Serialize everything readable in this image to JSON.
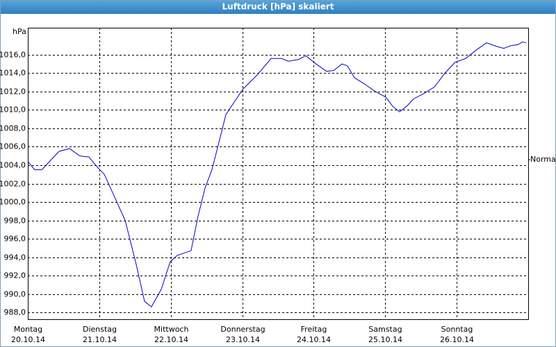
{
  "chart_data": {
    "type": "line",
    "title": "Luftdruck [hPa] skaliert",
    "y_unit": "hPa",
    "normal": {
      "value": 1004.6,
      "label": "Normal"
    },
    "xlim": [
      0,
      168
    ],
    "xticks": [
      {
        "value": 0,
        "label": "Montag"
      },
      {
        "value": 24,
        "label": "Dienstag"
      },
      {
        "value": 48,
        "label": "Mittwoch"
      },
      {
        "value": 72,
        "label": "Donnerstag"
      },
      {
        "value": 96,
        "label": "Freitag"
      },
      {
        "value": 120,
        "label": "Samstag"
      },
      {
        "value": 144,
        "label": "Sonntag"
      }
    ],
    "xtick_dates": [
      "20.10.14",
      "21.10.14",
      "22.10.14",
      "23.10.14",
      "24.10.14",
      "25.10.14",
      "26.10.14"
    ],
    "ylim": [
      987.25,
      1018.94
    ],
    "yticks": [
      {
        "value": 988,
        "label": "988,0"
      },
      {
        "value": 990,
        "label": "990,0"
      },
      {
        "value": 992,
        "label": "992,0"
      },
      {
        "value": 994,
        "label": "994,0"
      },
      {
        "value": 996,
        "label": "996,0"
      },
      {
        "value": 998,
        "label": "998,0"
      },
      {
        "value": 1000,
        "label": "1000,0"
      },
      {
        "value": 1002,
        "label": "1002,0"
      },
      {
        "value": 1004,
        "label": "1004,0"
      },
      {
        "value": 1006,
        "label": "1006,0"
      },
      {
        "value": 1008,
        "label": "1008,0"
      },
      {
        "value": 1010,
        "label": "1010,0"
      },
      {
        "value": 1012,
        "label": "1012,0"
      },
      {
        "value": 1014,
        "label": "1014,0"
      },
      {
        "value": 1016,
        "label": "1016,0"
      }
    ],
    "grid": true,
    "series": [
      {
        "color": "#0000c0",
        "x": [
          0,
          2.3,
          4.7,
          7,
          10.5,
          14,
          17.5,
          20.5,
          23.3,
          25.7,
          29.2,
          32.7,
          36.2,
          39.2,
          41.5,
          44.8,
          47.8,
          50.2,
          54.8,
          57.2,
          59.5,
          61.8,
          64.2,
          66.5,
          70,
          72.3,
          77,
          81.7,
          85.2,
          87.5,
          91,
          93.3,
          96.8,
          100.3,
          102.7,
          105.5,
          107.3,
          109.7,
          113.2,
          116.7,
          120.2,
          122.5,
          124.8,
          127.2,
          129.5,
          133,
          136.5,
          140,
          143.5,
          147,
          150.5,
          154,
          157.5,
          159.8,
          162.2,
          164.5,
          166.1,
          167.3
        ],
        "values": [
          1004.4,
          1003.5,
          1003.5,
          1004.3,
          1005.5,
          1005.8,
          1005.0,
          1004.9,
          1003.8,
          1003.0,
          1000.5,
          998.0,
          993.5,
          989.2,
          988.6,
          990.5,
          993.5,
          994.2,
          994.7,
          998.5,
          1001.5,
          1003.5,
          1006.5,
          1009.5,
          1011.2,
          1012.3,
          1013.8,
          1015.6,
          1015.6,
          1015.3,
          1015.5,
          1015.9,
          1015.0,
          1014.2,
          1014.3,
          1015.0,
          1014.8,
          1013.5,
          1012.8,
          1012.0,
          1011.4,
          1010.4,
          1009.8,
          1010.4,
          1011.2,
          1011.8,
          1012.5,
          1014.0,
          1015.2,
          1015.6,
          1016.5,
          1017.3,
          1016.9,
          1016.7,
          1017.0,
          1017.1,
          1017.4,
          1017.3
        ]
      }
    ]
  }
}
